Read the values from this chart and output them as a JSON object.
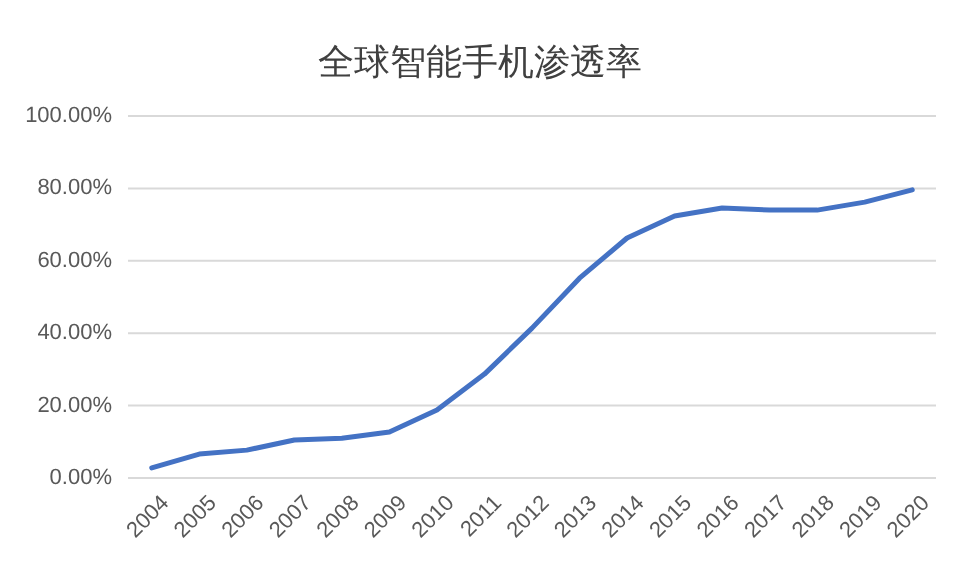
{
  "chart_data": {
    "type": "line",
    "title": "全球智能手机渗透率",
    "categories": [
      "2004",
      "2005",
      "2006",
      "2007",
      "2008",
      "2009",
      "2010",
      "2011",
      "2012",
      "2013",
      "2014",
      "2015",
      "2016",
      "2017",
      "2018",
      "2019",
      "2020"
    ],
    "series": [
      {
        "color": "#4472c4",
        "values": [
          2.8,
          6.6,
          7.7,
          10.5,
          11,
          12.7,
          18.8,
          28.7,
          41.4,
          55.2,
          66.3,
          72.4,
          74.6,
          74,
          74,
          76.2,
          79.6
        ]
      }
    ],
    "ylim": [
      0,
      100
    ],
    "yticks": [
      {
        "value": 0,
        "label": "0.00%"
      },
      {
        "value": 20,
        "label": "20.00%"
      },
      {
        "value": 40,
        "label": "40.00%"
      },
      {
        "value": 60,
        "label": "60.00%"
      },
      {
        "value": 80,
        "label": "80.00%"
      },
      {
        "value": 100,
        "label": "100.00%"
      }
    ],
    "grid": "y",
    "marker": "none",
    "line_style": "solid"
  }
}
